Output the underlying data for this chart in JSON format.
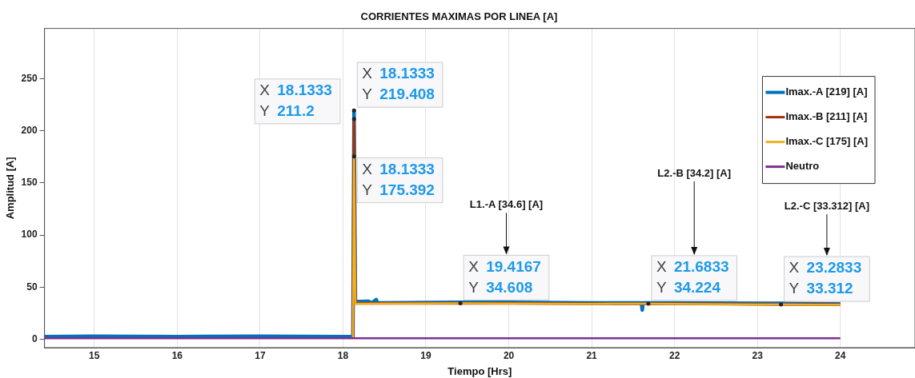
{
  "chart_data": {
    "type": "line",
    "title": "CORRIENTES MAXIMAS POR LINEA [A]",
    "xlabel": "Tiempo [Hrs]",
    "ylabel": "Amplitud [A]",
    "xlim": [
      14.4,
      24.9
    ],
    "xticks": [
      15,
      16,
      17,
      18,
      19,
      20,
      21,
      22,
      23,
      24
    ],
    "ylim": [
      -8,
      298
    ],
    "yticks": [
      0,
      50,
      100,
      150,
      200,
      250
    ],
    "grid": "x",
    "legend": "top right",
    "marker": "none",
    "line_style": "solid",
    "series": [
      {
        "name": "Imax.-A [219] [A]",
        "color": "#0072bd",
        "x": [
          14.4,
          15,
          16,
          17,
          18,
          18.12,
          18.1333,
          18.15,
          18.3,
          18.35,
          18.4,
          18.42,
          19.4167,
          20,
          21,
          21.3,
          21.6,
          21.61,
          21.62,
          21.6833,
          22,
          23,
          23.2833,
          24
        ],
        "values": [
          2.5,
          3,
          2.5,
          3,
          2.5,
          2.5,
          219.408,
          36,
          36.5,
          35,
          38,
          35,
          35.5,
          35.5,
          35,
          35,
          35,
          28,
          35,
          35,
          35,
          34.5,
          34.5,
          34
        ]
      },
      {
        "name": "Imax.-B [211] [A]",
        "color": "#a2340c",
        "x": [
          18.12,
          18.1333,
          18.15,
          19.4167,
          20,
          21,
          21.6833,
          22,
          23,
          23.2833,
          24
        ],
        "values": [
          1.5,
          211.2,
          34.5,
          34.6,
          34.5,
          34.2,
          34.224,
          34.2,
          33.5,
          33.4,
          33.3
        ]
      },
      {
        "name": "Imax.-C [175] [A]",
        "color": "#edb120",
        "x": [
          18.12,
          18.1333,
          18.15,
          19.4167,
          20,
          21,
          21.6833,
          22,
          23,
          23.2833,
          24
        ],
        "values": [
          1.5,
          175.392,
          34.2,
          34.608,
          34.4,
          34,
          34.224,
          34,
          33.4,
          33.312,
          33.2
        ]
      },
      {
        "name": "Neutro",
        "color": "#7e2f8e",
        "x": [
          14.4,
          16,
          18,
          18.15,
          20,
          22,
          24
        ],
        "values": [
          1,
          1,
          1,
          1,
          1,
          1,
          1
        ]
      }
    ],
    "annotations": [
      {
        "text": "X 18.1333\nY 219.408",
        "x": 18.1333,
        "y": 219.408
      },
      {
        "text": "X 18.1333\nY 211.2",
        "x": 18.1333,
        "y": 211.2
      },
      {
        "text": "X 18.1333\nY 175.392",
        "x": 18.1333,
        "y": 175.392
      },
      {
        "text": "X 19.4167\nY 34.608",
        "x": 19.4167,
        "y": 34.608
      },
      {
        "text": "X 21.6833\nY 34.224",
        "x": 21.6833,
        "y": 34.224
      },
      {
        "text": "X 23.2833\nY 33.312",
        "x": 23.2833,
        "y": 33.312
      },
      "L1.-A [34.6] [A]",
      "L2.-B [34.2] [A]",
      "L2.-C [33.312] [A]"
    ]
  }
}
